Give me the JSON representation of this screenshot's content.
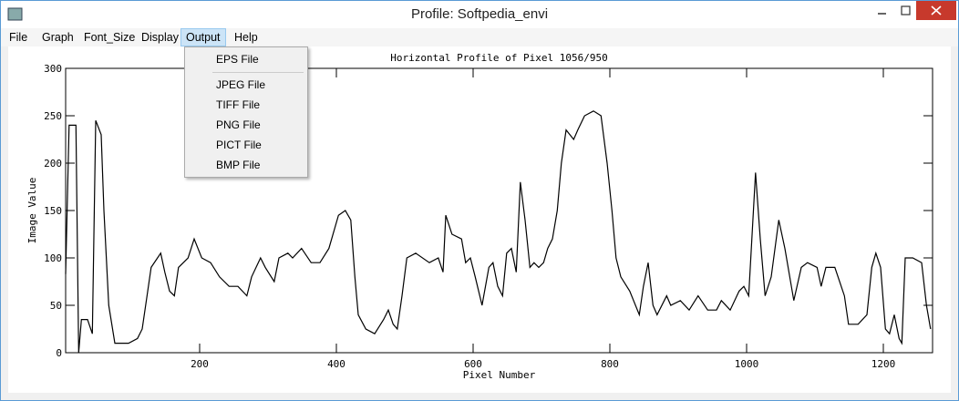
{
  "window": {
    "title": "Profile: Softpedia_envi"
  },
  "menu": [
    "File",
    "Graph",
    "Font_Size",
    "Display",
    "Output",
    "Help"
  ],
  "dropdown": [
    "EPS File",
    "JPEG File",
    "TIFF File",
    "PNG File",
    "PICT File",
    "BMP File"
  ],
  "chart_data": {
    "type": "line",
    "title": "Horizontal Profile of Pixel 1056/950",
    "x_label": "Pixel Number",
    "y_label": "Image Value",
    "color": "#000000",
    "x": [
      4,
      9,
      19,
      23,
      27,
      36,
      43,
      48,
      56,
      60,
      67,
      76,
      96,
      109,
      116,
      123,
      129,
      143,
      149,
      156,
      163,
      169,
      183,
      192,
      203,
      216,
      229,
      243,
      256,
      269,
      276,
      289,
      296,
      309,
      316,
      329,
      336,
      349,
      363,
      376,
      389,
      403,
      413,
      421,
      427,
      432,
      443,
      456,
      469,
      476,
      483,
      489,
      496,
      503,
      516,
      536,
      549,
      556,
      560,
      569,
      583,
      589,
      596,
      603,
      613,
      623,
      629,
      636,
      643,
      649,
      656,
      663,
      669,
      676,
      683,
      689,
      696,
      703,
      709,
      716,
      723,
      729,
      736,
      747,
      753,
      763,
      776,
      787,
      796,
      803,
      809,
      816,
      829,
      843,
      849,
      856,
      863,
      869,
      883,
      889,
      903,
      916,
      929,
      943,
      956,
      963,
      976,
      989,
      996,
      1003,
      1013,
      1020,
      1027,
      1036,
      1047,
      1056,
      1069,
      1080,
      1089,
      1103,
      1109,
      1116,
      1129,
      1143,
      1149,
      1163,
      1176,
      1183,
      1189,
      1196,
      1203,
      1209,
      1216,
      1223,
      1227,
      1232,
      1243,
      1256,
      1263,
      1269
    ],
    "values": [
      83,
      240,
      240,
      0,
      35,
      35,
      20,
      245,
      230,
      150,
      50,
      10,
      10,
      15,
      25,
      60,
      90,
      105,
      85,
      65,
      60,
      90,
      100,
      120,
      100,
      95,
      80,
      70,
      70,
      60,
      80,
      100,
      90,
      75,
      100,
      105,
      100,
      110,
      95,
      95,
      110,
      145,
      150,
      140,
      80,
      40,
      25,
      20,
      35,
      45,
      30,
      25,
      60,
      100,
      105,
      95,
      100,
      85,
      145,
      125,
      120,
      95,
      100,
      80,
      50,
      90,
      95,
      70,
      60,
      105,
      110,
      85,
      180,
      140,
      90,
      95,
      90,
      95,
      110,
      120,
      150,
      200,
      235,
      225,
      235,
      250,
      255,
      250,
      200,
      150,
      100,
      80,
      65,
      40,
      70,
      95,
      50,
      40,
      60,
      50,
      55,
      45,
      60,
      45,
      45,
      55,
      45,
      65,
      70,
      60,
      190,
      120,
      60,
      80,
      140,
      110,
      55,
      90,
      95,
      90,
      70,
      90,
      90,
      60,
      30,
      30,
      40,
      90,
      105,
      90,
      25,
      20,
      40,
      15,
      10,
      100,
      100,
      95,
      50,
      25
    ],
    "xlim": [
      4,
      1272
    ],
    "ylim": [
      0,
      300
    ],
    "xticks": [
      200,
      400,
      600,
      800,
      1000,
      1200
    ],
    "yticks": [
      0,
      50,
      100,
      150,
      200,
      250,
      300
    ]
  }
}
